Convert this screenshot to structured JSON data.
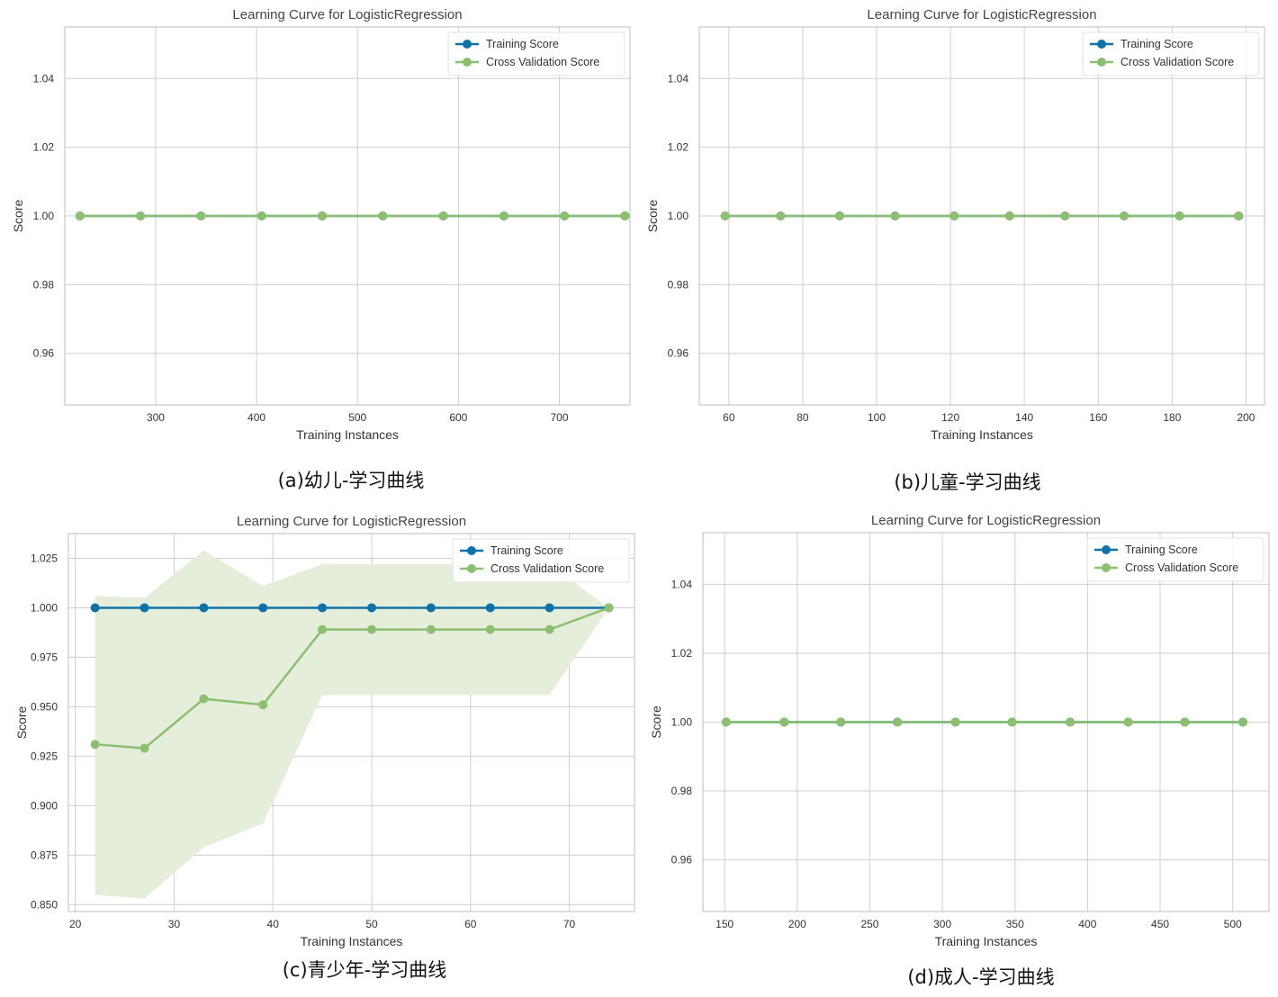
{
  "colors": {
    "training": "#0e72a8",
    "cv": "#8cbf6f",
    "band": "#e4eedb",
    "grid": "#cfcfcf",
    "axis": "#bdbdbd",
    "text": "#333333",
    "title": "#444444"
  },
  "captions": {
    "a": "(a)幼儿-学习曲线",
    "b": "(b)儿童-学习曲线",
    "c": "(c)青少年-学习曲线",
    "d": "(d)成人-学习曲线"
  },
  "chart_data": [
    {
      "id": "a",
      "type": "line",
      "title": "Learning Curve for LogisticRegression",
      "xlabel": "Training Instances",
      "ylabel": "Score",
      "xlim": [
        210,
        770
      ],
      "ylim": [
        0.945,
        1.055
      ],
      "xticks": [
        300,
        400,
        500,
        600,
        700
      ],
      "yticks": [
        0.96,
        0.98,
        1.0,
        1.02,
        1.04
      ],
      "ytick_decimals": 2,
      "grid": true,
      "legend": "top-right",
      "x": [
        225,
        285,
        345,
        405,
        465,
        525,
        585,
        645,
        705,
        765
      ],
      "series": [
        {
          "name": "Training Score",
          "values": [
            1,
            1,
            1,
            1,
            1,
            1,
            1,
            1,
            1,
            1
          ]
        },
        {
          "name": "Cross Validation Score",
          "values": [
            1,
            1,
            1,
            1,
            1,
            1,
            1,
            1,
            1,
            1
          ],
          "band_low": [
            1,
            1,
            1,
            1,
            1,
            1,
            1,
            1,
            1,
            1
          ],
          "band_high": [
            1,
            1,
            1,
            1,
            1,
            1,
            1,
            1,
            1,
            1
          ]
        }
      ]
    },
    {
      "id": "b",
      "type": "line",
      "title": "Learning Curve for LogisticRegression",
      "xlabel": "Training Instances",
      "ylabel": "Score",
      "xlim": [
        52,
        205
      ],
      "ylim": [
        0.945,
        1.055
      ],
      "xticks": [
        60,
        80,
        100,
        120,
        140,
        160,
        180,
        200
      ],
      "yticks": [
        0.96,
        0.98,
        1.0,
        1.02,
        1.04
      ],
      "ytick_decimals": 2,
      "grid": true,
      "legend": "top-right",
      "x": [
        59,
        74,
        90,
        105,
        121,
        136,
        151,
        167,
        182,
        198
      ],
      "series": [
        {
          "name": "Training Score",
          "values": [
            1,
            1,
            1,
            1,
            1,
            1,
            1,
            1,
            1,
            1
          ]
        },
        {
          "name": "Cross Validation Score",
          "values": [
            1,
            1,
            1,
            1,
            1,
            1,
            1,
            1,
            1,
            1
          ],
          "band_low": [
            1,
            1,
            1,
            1,
            1,
            1,
            1,
            1,
            1,
            1
          ],
          "band_high": [
            1,
            1,
            1,
            1,
            1,
            1,
            1,
            1,
            1,
            1
          ]
        }
      ]
    },
    {
      "id": "c",
      "type": "line",
      "title": "Learning Curve for LogisticRegression",
      "xlabel": "Training Instances",
      "ylabel": "Score",
      "xlim": [
        19.3,
        76.6
      ],
      "ylim": [
        0.8465,
        1.0375
      ],
      "xticks": [
        20,
        30,
        40,
        50,
        60,
        70
      ],
      "yticks": [
        0.85,
        0.875,
        0.9,
        0.925,
        0.95,
        0.975,
        1.0,
        1.025
      ],
      "ytick_decimals": 3,
      "grid": true,
      "legend": "top-right",
      "x": [
        22,
        27,
        33,
        39,
        45,
        50,
        56,
        62,
        68,
        74
      ],
      "series": [
        {
          "name": "Training Score",
          "values": [
            1,
            1,
            1,
            1,
            1,
            1,
            1,
            1,
            1,
            1
          ]
        },
        {
          "name": "Cross Validation Score",
          "values": [
            0.931,
            0.929,
            0.954,
            0.951,
            0.989,
            0.989,
            0.989,
            0.989,
            0.989,
            1.0
          ],
          "band_low": [
            0.855,
            0.853,
            0.879,
            0.891,
            0.956,
            0.956,
            0.956,
            0.956,
            0.956,
            1.0
          ],
          "band_high": [
            1.006,
            1.005,
            1.029,
            1.011,
            1.022,
            1.022,
            1.022,
            1.022,
            1.022,
            1.0
          ]
        }
      ]
    },
    {
      "id": "d",
      "type": "line",
      "title": "Learning Curve for LogisticRegression",
      "xlabel": "Training Instances",
      "ylabel": "Score",
      "xlim": [
        135,
        525
      ],
      "ylim": [
        0.945,
        1.055
      ],
      "xticks": [
        150,
        200,
        250,
        300,
        350,
        400,
        450,
        500
      ],
      "yticks": [
        0.96,
        0.98,
        1.0,
        1.02,
        1.04
      ],
      "ytick_decimals": 2,
      "grid": true,
      "legend": "top-right",
      "x": [
        151,
        191,
        230,
        269,
        309,
        348,
        388,
        428,
        467,
        507
      ],
      "series": [
        {
          "name": "Training Score",
          "values": [
            1,
            1,
            1,
            1,
            1,
            1,
            1,
            1,
            1,
            1
          ]
        },
        {
          "name": "Cross Validation Score",
          "values": [
            1,
            1,
            1,
            1,
            1,
            1,
            1,
            1,
            1,
            1
          ],
          "band_low": [
            1,
            1,
            1,
            1,
            1,
            1,
            1,
            1,
            1,
            1
          ],
          "band_high": [
            1,
            1,
            1,
            1,
            1,
            1,
            1,
            1,
            1,
            1
          ]
        }
      ]
    }
  ]
}
